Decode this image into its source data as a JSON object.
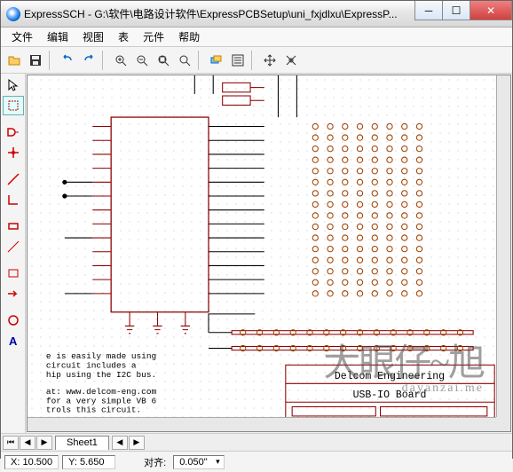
{
  "window": {
    "title": "ExpressSCH - G:\\软件\\电路设计软件\\ExpressPCBSetup\\uni_fxjdlxu\\ExpressP..."
  },
  "menu": {
    "file": "文件",
    "edit": "编辑",
    "view": "视图",
    "table": "表",
    "component": "元件",
    "help": "帮助"
  },
  "toolbar_icons": {
    "open": "open-icon",
    "save": "save-icon",
    "undo": "undo-icon",
    "redo": "redo-icon",
    "zoomin": "zoom-in-icon",
    "zoomout": "zoom-out-icon",
    "zoomfit": "zoom-fit-icon",
    "zoomarea": "zoom-area-icon",
    "layers": "layers-icon",
    "options": "options-icon",
    "move1": "move-h-icon",
    "move2": "move-v-icon"
  },
  "left_tools": {
    "arrow": "arrow-icon",
    "marquee": "marquee-icon",
    "gatered": "gate-icon",
    "junction": "junction-icon",
    "wire": "wire-icon",
    "corner": "corner-icon",
    "rect": "rect-icon",
    "line": "line-icon",
    "rect2": "rect-outline-icon",
    "busarrow": "bus-arrow-icon",
    "circle": "circle-icon",
    "text": "text-icon"
  },
  "schematic": {
    "text_lines": [
      "e is easily made using",
      " circuit includes a",
      "hip using the I2C bus.",
      "",
      " at:    www.delcom-eng.com",
      " for a very simple VB 6",
      "trols this circuit."
    ],
    "label_box_line1": "Delcom Engineering",
    "label_box_line2": "USB-IO  Board",
    "colors": {
      "wire": "#000000",
      "component": "#8b0000",
      "grid_dot": "#bbbbbb",
      "connector_pad": "#aa7733",
      "pad_ring": "#a04000"
    }
  },
  "tabs": {
    "sheet1": "Sheet1"
  },
  "status": {
    "x_label": "X:",
    "x_value": "10.500",
    "y_label": "Y:",
    "y_value": "5.650",
    "snap_label": "对齐:",
    "snap_value": "0.050\""
  },
  "watermark": {
    "big": "大眼仔~旭",
    "sub": "dayanzai.me"
  }
}
